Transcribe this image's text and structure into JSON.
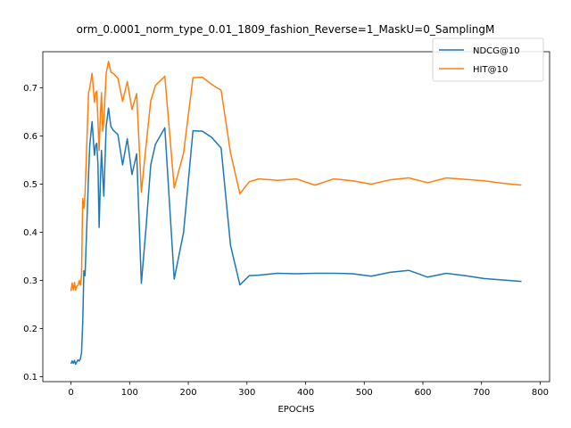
{
  "chart_data": {
    "type": "line",
    "title": "orm_0.0001_norm_type_0.01_1809_fashion_Reverse=1_MaskU=0_SamplingM",
    "xlabel": "EPOCHS",
    "ylabel": "",
    "xlim": [
      -48,
      816
    ],
    "ylim": [
      0.09,
      0.775
    ],
    "xticks": [
      0,
      100,
      200,
      300,
      400,
      500,
      600,
      700,
      800
    ],
    "yticks": [
      0.1,
      0.2,
      0.3,
      0.4,
      0.5,
      0.6,
      0.7
    ],
    "grid": false,
    "legend_position": "top-right",
    "series": [
      {
        "name": "NDCG@10",
        "color": "#1f77b4",
        "x": [
          0,
          2,
          4,
          6,
          8,
          10,
          12,
          14,
          16,
          18,
          20,
          22,
          24,
          26,
          28,
          30,
          32,
          36,
          40,
          42,
          44,
          46,
          48,
          50,
          52,
          54,
          56,
          60,
          64,
          68,
          72,
          80,
          88,
          96,
          104,
          112,
          120,
          128,
          136,
          144,
          160,
          176,
          192,
          208,
          224,
          240,
          256,
          272,
          288,
          304,
          320,
          352,
          384,
          416,
          448,
          480,
          512,
          544,
          576,
          608,
          640,
          672,
          704,
          736,
          768
        ],
        "y": [
          0.127,
          0.133,
          0.128,
          0.134,
          0.126,
          0.131,
          0.135,
          0.133,
          0.137,
          0.15,
          0.21,
          0.32,
          0.31,
          0.38,
          0.45,
          0.52,
          0.58,
          0.63,
          0.56,
          0.58,
          0.585,
          0.54,
          0.41,
          0.5,
          0.57,
          0.52,
          0.475,
          0.62,
          0.658,
          0.62,
          0.612,
          0.603,
          0.54,
          0.594,
          0.52,
          0.563,
          0.294,
          0.41,
          0.54,
          0.583,
          0.617,
          0.303,
          0.4,
          0.611,
          0.61,
          0.597,
          0.575,
          0.373,
          0.291,
          0.31,
          0.311,
          0.315,
          0.314,
          0.315,
          0.315,
          0.314,
          0.309,
          0.317,
          0.321,
          0.307,
          0.315,
          0.31,
          0.304,
          0.301,
          0.298
        ]
      },
      {
        "name": "HIT@10",
        "color": "#ff7f0e",
        "x": [
          0,
          2,
          4,
          6,
          8,
          10,
          12,
          14,
          16,
          18,
          20,
          22,
          24,
          26,
          28,
          30,
          32,
          36,
          40,
          42,
          44,
          46,
          48,
          50,
          52,
          54,
          56,
          60,
          64,
          68,
          72,
          80,
          88,
          96,
          104,
          112,
          120,
          128,
          136,
          144,
          160,
          176,
          192,
          208,
          224,
          240,
          256,
          272,
          288,
          304,
          320,
          352,
          384,
          416,
          448,
          480,
          512,
          544,
          576,
          608,
          640,
          672,
          704,
          736,
          768
        ],
        "y": [
          0.278,
          0.295,
          0.28,
          0.296,
          0.28,
          0.288,
          0.29,
          0.3,
          0.29,
          0.31,
          0.47,
          0.45,
          0.48,
          0.55,
          0.62,
          0.69,
          0.7,
          0.73,
          0.67,
          0.69,
          0.693,
          0.63,
          0.57,
          0.64,
          0.69,
          0.61,
          0.63,
          0.73,
          0.755,
          0.733,
          0.73,
          0.72,
          0.672,
          0.713,
          0.655,
          0.688,
          0.483,
          0.58,
          0.673,
          0.705,
          0.724,
          0.492,
          0.565,
          0.721,
          0.722,
          0.707,
          0.695,
          0.565,
          0.48,
          0.505,
          0.511,
          0.508,
          0.511,
          0.498,
          0.511,
          0.507,
          0.5,
          0.509,
          0.513,
          0.503,
          0.513,
          0.51,
          0.507,
          0.502,
          0.498
        ]
      }
    ]
  }
}
